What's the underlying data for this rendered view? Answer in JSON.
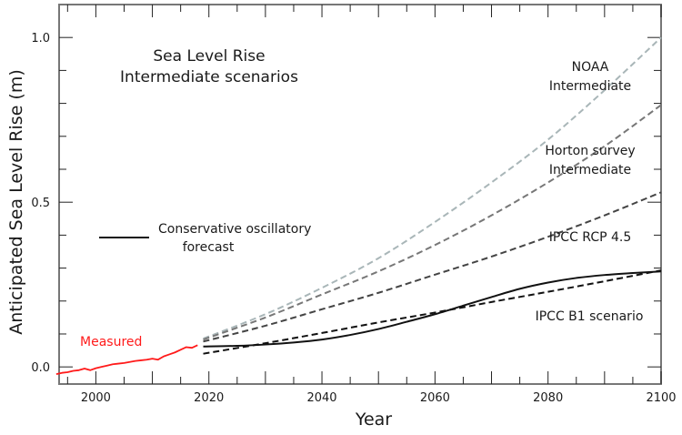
{
  "chart_data": {
    "type": "line",
    "title": "Sea Level Rise",
    "subtitle": "Intermediate scenarios",
    "xlabel": "Year",
    "ylabel": "Anticipated Sea Level Rise (m)",
    "xlim": [
      1993.5,
      2100
    ],
    "ylim": [
      -0.052,
      1.1
    ],
    "x_ticks": [
      2000,
      2020,
      2040,
      2060,
      2080,
      2100
    ],
    "x_tick_labels": [
      "2000",
      "2020",
      "2040",
      "2060",
      "2080",
      "2100"
    ],
    "y_ticks": [
      0.0,
      0.5,
      1.0
    ],
    "y_tick_labels": [
      "0.0",
      "0.5",
      "1.0"
    ],
    "grid": false,
    "legend": {
      "entries": [
        {
          "label_line1": "Conservative oscillatory",
          "label_line2": "forecast",
          "style": "solid",
          "color": "#111111"
        }
      ],
      "placement": "middle-left"
    },
    "series": [
      {
        "name": "Measured",
        "label": "Measured",
        "color": "#ff1a1a",
        "style": "solid",
        "x": [
          1993,
          1994,
          1995,
          1996,
          1997,
          1998,
          1999,
          2000,
          2001,
          2002,
          2003,
          2004,
          2005,
          2006,
          2007,
          2008,
          2009,
          2010,
          2011,
          2012,
          2013,
          2014,
          2015,
          2016,
          2017,
          2018
        ],
        "y": [
          -0.022,
          -0.018,
          -0.016,
          -0.012,
          -0.01,
          -0.005,
          -0.01,
          -0.004,
          0.0,
          0.004,
          0.008,
          0.01,
          0.012,
          0.015,
          0.018,
          0.02,
          0.022,
          0.025,
          0.022,
          0.032,
          0.038,
          0.044,
          0.052,
          0.06,
          0.058,
          0.066
        ]
      },
      {
        "name": "NOAA Intermediate",
        "label_line1": "NOAA",
        "label_line2": "Intermediate",
        "color": "#a9b6b8",
        "style": "dashed",
        "x": [
          2019,
          2030,
          2040,
          2050,
          2060,
          2070,
          2080,
          2090,
          2100
        ],
        "y": [
          0.086,
          0.16,
          0.24,
          0.33,
          0.44,
          0.56,
          0.69,
          0.84,
          1.0
        ]
      },
      {
        "name": "Horton survey Intermediate",
        "label_line1": "Horton survey",
        "label_line2": "Intermediate",
        "color": "#777777",
        "style": "dashed",
        "x": [
          2019,
          2030,
          2040,
          2050,
          2060,
          2070,
          2080,
          2090,
          2100
        ],
        "y": [
          0.083,
          0.15,
          0.22,
          0.29,
          0.37,
          0.46,
          0.56,
          0.67,
          0.795
        ]
      },
      {
        "name": "IPCC RCP 4.5",
        "label": "IPCC RCP 4.5",
        "color": "#444444",
        "style": "dashed",
        "x": [
          2019,
          2030,
          2040,
          2050,
          2060,
          2070,
          2080,
          2090,
          2100
        ],
        "y": [
          0.077,
          0.125,
          0.175,
          0.225,
          0.28,
          0.335,
          0.395,
          0.46,
          0.53
        ]
      },
      {
        "name": "IPCC B1 scenario",
        "label": "IPCC B1 scenario",
        "color": "#111111",
        "style": "dashed",
        "x": [
          2019,
          2030,
          2040,
          2050,
          2060,
          2070,
          2080,
          2090,
          2100
        ],
        "y": [
          0.04,
          0.072,
          0.103,
          0.135,
          0.165,
          0.197,
          0.228,
          0.26,
          0.293
        ]
      },
      {
        "name": "Conservative oscillatory forecast",
        "color": "#111111",
        "style": "solid",
        "x": [
          2019,
          2025,
          2030,
          2035,
          2040,
          2045,
          2050,
          2055,
          2060,
          2065,
          2070,
          2075,
          2080,
          2085,
          2090,
          2095,
          2100
        ],
        "y": [
          0.062,
          0.064,
          0.068,
          0.074,
          0.083,
          0.097,
          0.115,
          0.137,
          0.16,
          0.186,
          0.212,
          0.237,
          0.256,
          0.27,
          0.279,
          0.285,
          0.29
        ]
      }
    ]
  }
}
